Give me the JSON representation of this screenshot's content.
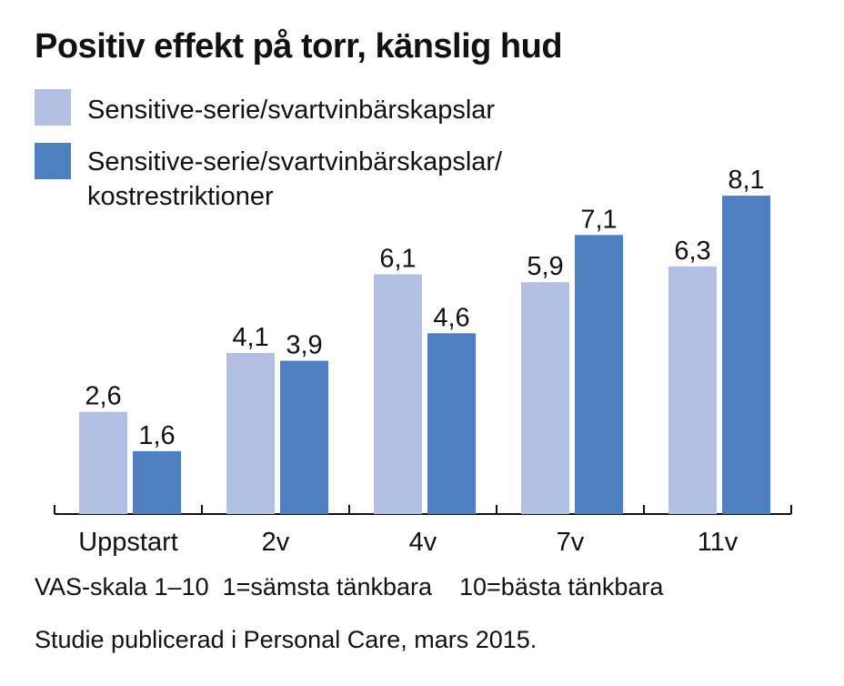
{
  "title": "Positiv effekt på torr, känslig hud",
  "legend": [
    {
      "label": "Sensitive-serie/svartvinbärskapslar",
      "color": "#b4c0e3"
    },
    {
      "label": "Sensitive-serie/svartvinbärskapslar/\nkostrestriktioner",
      "color": "#4f7fbf"
    }
  ],
  "footnotes": {
    "scale": "VAS-skala 1–10  1=sämsta tänkbara    10=bästa tänkbara",
    "source": "Studie publicerad i Personal Care, mars 2015."
  },
  "chart_data": {
    "type": "bar",
    "categories": [
      "Uppstart",
      "2v",
      "4v",
      "7v",
      "11v"
    ],
    "series": [
      {
        "values": [
          2.6,
          4.1,
          6.1,
          5.9,
          6.3
        ],
        "labels": [
          "2,6",
          "4,1",
          "6,1",
          "5,9",
          "6,3"
        ],
        "color": "#b4c0e3"
      },
      {
        "values": [
          1.6,
          3.9,
          4.6,
          7.1,
          8.1
        ],
        "labels": [
          "1,6",
          "3,9",
          "4,6",
          "7,1",
          "8,1"
        ],
        "color": "#4f7fbf"
      }
    ],
    "ylim": [
      0,
      10
    ],
    "grid": false,
    "legend_position": "top-left"
  }
}
